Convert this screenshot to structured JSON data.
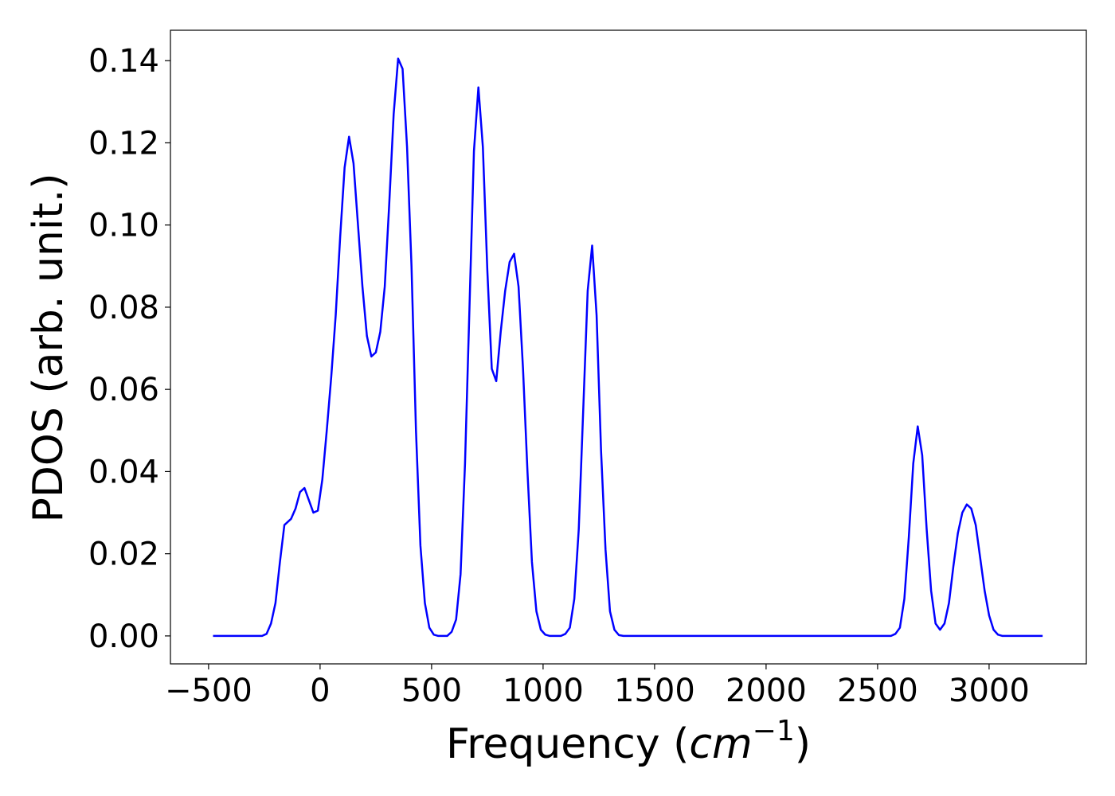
{
  "chart_data": {
    "type": "line",
    "xlabel_parts": [
      "Frequency (",
      "cm",
      "−1",
      ")"
    ],
    "ylabel": "PDOS (arb. unit.)",
    "xlim": [
      -671,
      3436
    ],
    "ylim": [
      -0.0068,
      0.1474
    ],
    "xticks": [
      {
        "value": -500,
        "label": "−500"
      },
      0,
      500,
      1000,
      1500,
      2000,
      2500,
      3000
    ],
    "yticks": [
      {
        "value": 0,
        "label": "0.00"
      },
      {
        "value": 0.02,
        "label": "0.02"
      },
      {
        "value": 0.04,
        "label": "0.04"
      },
      {
        "value": 0.06,
        "label": "0.06"
      },
      {
        "value": 0.08,
        "label": "0.08"
      },
      {
        "value": 0.1,
        "label": "0.10"
      },
      {
        "value": 0.12,
        "label": "0.12"
      },
      {
        "value": 0.14,
        "label": "0.14"
      }
    ],
    "grid": false,
    "series": [
      {
        "color": "#0000ff",
        "x": [
          -480,
          -260,
          -240,
          -220,
          -200,
          -180,
          -160,
          -130,
          -110,
          -90,
          -70,
          -50,
          -30,
          -10,
          10,
          30,
          50,
          70,
          90,
          110,
          130,
          150,
          170,
          190,
          210,
          230,
          250,
          270,
          290,
          310,
          330,
          350,
          370,
          390,
          410,
          430,
          450,
          470,
          490,
          510,
          530,
          570,
          590,
          610,
          630,
          650,
          670,
          690,
          710,
          730,
          750,
          770,
          790,
          810,
          830,
          850,
          870,
          890,
          910,
          930,
          950,
          970,
          990,
          1010,
          1030,
          1080,
          1100,
          1120,
          1140,
          1160,
          1180,
          1200,
          1220,
          1240,
          1260,
          1280,
          1300,
          1320,
          1340,
          1360,
          2560,
          2580,
          2600,
          2620,
          2640,
          2660,
          2680,
          2700,
          2720,
          2740,
          2760,
          2780,
          2800,
          2820,
          2840,
          2860,
          2880,
          2900,
          2920,
          2940,
          2960,
          2980,
          3000,
          3020,
          3040,
          3060,
          3240
        ],
        "values": [
          0,
          0,
          0.0005,
          0.003,
          0.008,
          0.018,
          0.027,
          0.0285,
          0.031,
          0.035,
          0.036,
          0.033,
          0.03,
          0.0305,
          0.038,
          0.05,
          0.063,
          0.078,
          0.097,
          0.114,
          0.1215,
          0.115,
          0.1,
          0.085,
          0.073,
          0.068,
          0.069,
          0.074,
          0.085,
          0.105,
          0.127,
          0.1405,
          0.138,
          0.119,
          0.09,
          0.05,
          0.022,
          0.008,
          0.002,
          0.0003,
          0,
          0,
          0.001,
          0.004,
          0.015,
          0.042,
          0.08,
          0.118,
          0.1335,
          0.119,
          0.089,
          0.065,
          0.062,
          0.074,
          0.084,
          0.091,
          0.093,
          0.085,
          0.065,
          0.04,
          0.018,
          0.006,
          0.0015,
          0.0003,
          0,
          0,
          0.0005,
          0.002,
          0.009,
          0.026,
          0.055,
          0.084,
          0.095,
          0.078,
          0.045,
          0.021,
          0.006,
          0.0015,
          0.0002,
          0,
          0,
          0.0005,
          0.002,
          0.009,
          0.024,
          0.042,
          0.051,
          0.044,
          0.026,
          0.011,
          0.003,
          0.0015,
          0.003,
          0.008,
          0.017,
          0.025,
          0.03,
          0.032,
          0.031,
          0.027,
          0.019,
          0.011,
          0.005,
          0.0015,
          0.0003,
          0,
          0
        ]
      }
    ]
  }
}
